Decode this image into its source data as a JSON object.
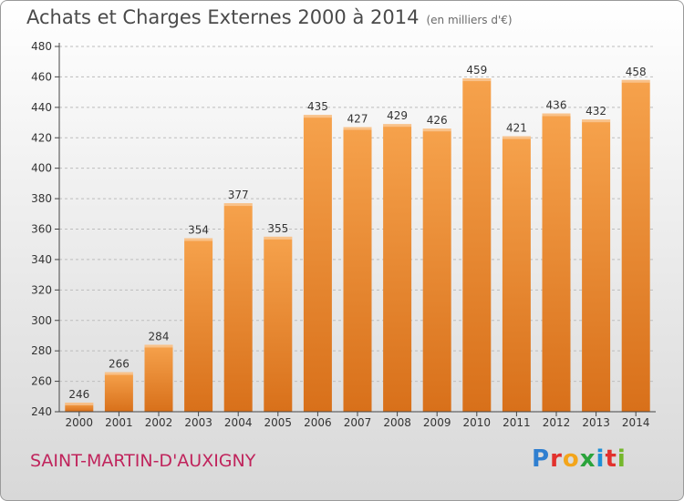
{
  "header": {
    "title": "Achats et Charges Externes 2000 à 2014",
    "unit": "(en milliers d'€)"
  },
  "footer": {
    "commune": "SAINT-MARTIN-D'AUXIGNY",
    "logo": "Proxiti"
  },
  "colors": {
    "bar_top": "#f6a24c",
    "bar_bottom": "#d8701a",
    "axis": "#444444",
    "grid": "#bdbdbd",
    "commune": "#c0245c"
  },
  "chart_data": {
    "type": "bar",
    "title": "Achats et Charges Externes 2000 à 2014",
    "subtitle": "(en milliers d'€)",
    "xlabel": "",
    "ylabel": "",
    "categories": [
      "2000",
      "2001",
      "2002",
      "2003",
      "2004",
      "2005",
      "2006",
      "2007",
      "2008",
      "2009",
      "2010",
      "2011",
      "2012",
      "2013",
      "2014"
    ],
    "values": [
      246,
      266,
      284,
      354,
      377,
      355,
      435,
      427,
      429,
      426,
      459,
      421,
      436,
      432,
      458
    ],
    "ylim": [
      240,
      480
    ],
    "yticks": [
      240,
      260,
      280,
      300,
      320,
      340,
      360,
      380,
      400,
      420,
      440,
      460,
      480
    ],
    "grid": true,
    "data_labels": true
  }
}
